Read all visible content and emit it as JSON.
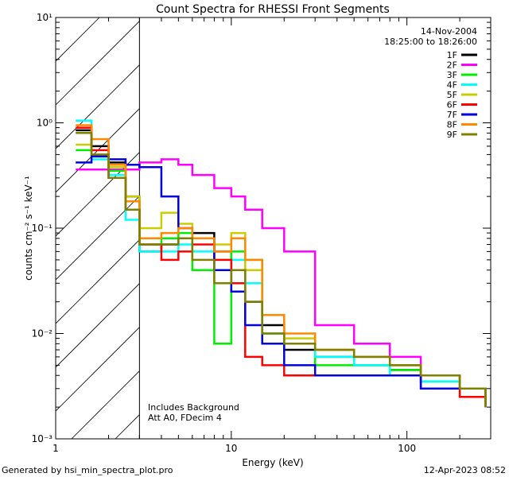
{
  "chart_data": {
    "type": "line",
    "title": "Count Spectra for RHESSI Front Segments",
    "xlabel": "Energy (keV)",
    "ylabel": "counts cm⁻² s⁻¹ keV⁻¹",
    "xscale": "log",
    "yscale": "log",
    "xlim": [
      1,
      300
    ],
    "ylim": [
      0.001,
      10
    ],
    "x_ticks": [
      {
        "value": 1,
        "label": "1"
      },
      {
        "value": 10,
        "label": "10"
      },
      {
        "value": 100,
        "label": "100"
      }
    ],
    "y_ticks": [
      {
        "value": 0.001,
        "label": "10⁻³"
      },
      {
        "value": 0.01,
        "label": "10⁻²"
      },
      {
        "value": 0.1,
        "label": "10⁻¹"
      },
      {
        "value": 1,
        "label": "10⁰"
      },
      {
        "value": 10,
        "label": "10¹"
      }
    ],
    "excluded_region": [
      1,
      3
    ],
    "grid": false,
    "legend_position": "top-right",
    "date": "14-Nov-2004",
    "time_range": "18:25:00 to 18:26:00",
    "annotation_lines": [
      "Includes Background",
      "Att A0, FDecim 4"
    ],
    "series": [
      {
        "name": "1F",
        "color": "#000000",
        "x": [
          1.3,
          1.6,
          2,
          2.5,
          3,
          4,
          5,
          6,
          8,
          10,
          12,
          15,
          20,
          30,
          50,
          80,
          120,
          200,
          280
        ],
        "y": [
          0.85,
          0.6,
          0.42,
          0.2,
          0.06,
          0.07,
          0.08,
          0.09,
          0.06,
          0.04,
          0.02,
          0.012,
          0.007,
          0.006,
          0.005,
          0.0045,
          0.004,
          0.003,
          0.002
        ]
      },
      {
        "name": "2F",
        "color": "#ff00ff",
        "x": [
          1.3,
          1.6,
          2,
          2.5,
          3,
          4,
          5,
          6,
          8,
          10,
          12,
          15,
          20,
          30,
          50,
          80,
          120,
          200,
          280
        ],
        "y": [
          0.36,
          0.36,
          0.36,
          0.36,
          0.42,
          0.45,
          0.4,
          0.32,
          0.24,
          0.2,
          0.15,
          0.1,
          0.06,
          0.012,
          0.008,
          0.006,
          0.004,
          0.003,
          0.002
        ]
      },
      {
        "name": "3F",
        "color": "#00ee00",
        "x": [
          1.3,
          1.6,
          2,
          2.5,
          3,
          4,
          5,
          6,
          8,
          10,
          12,
          15,
          20,
          30,
          50,
          80,
          120,
          200,
          280
        ],
        "y": [
          0.55,
          0.5,
          0.35,
          0.18,
          0.07,
          0.08,
          0.09,
          0.04,
          0.008,
          0.06,
          0.05,
          0.01,
          0.008,
          0.005,
          0.005,
          0.0045,
          0.0035,
          0.003,
          0.002
        ]
      },
      {
        "name": "4F",
        "color": "#00ffff",
        "x": [
          1.3,
          1.6,
          2,
          2.5,
          3,
          4,
          5,
          6,
          8,
          10,
          12,
          15,
          20,
          30,
          50,
          80,
          120,
          200,
          280
        ],
        "y": [
          1.05,
          0.45,
          0.32,
          0.12,
          0.06,
          0.06,
          0.07,
          0.06,
          0.04,
          0.05,
          0.03,
          0.01,
          0.008,
          0.006,
          0.005,
          0.004,
          0.0035,
          0.003,
          0.002
        ]
      },
      {
        "name": "5F",
        "color": "#cccc00",
        "x": [
          1.3,
          1.6,
          2,
          2.5,
          3,
          4,
          5,
          6,
          8,
          10,
          12,
          15,
          20,
          30,
          50,
          80,
          120,
          200,
          280
        ],
        "y": [
          0.62,
          0.5,
          0.38,
          0.2,
          0.1,
          0.14,
          0.11,
          0.08,
          0.07,
          0.09,
          0.04,
          0.015,
          0.009,
          0.007,
          0.006,
          0.005,
          0.004,
          0.003,
          0.002
        ]
      },
      {
        "name": "6F",
        "color": "#ff0000",
        "x": [
          1.3,
          1.6,
          2,
          2.5,
          3,
          4,
          5,
          6,
          8,
          10,
          12,
          15,
          20,
          30,
          50,
          80,
          120,
          200,
          280
        ],
        "y": [
          0.9,
          0.55,
          0.3,
          0.15,
          0.07,
          0.05,
          0.06,
          0.07,
          0.05,
          0.03,
          0.006,
          0.005,
          0.004,
          0.004,
          0.004,
          0.004,
          0.003,
          0.0025,
          0.002
        ]
      },
      {
        "name": "7F",
        "color": "#0000dd",
        "x": [
          1.3,
          1.6,
          2,
          2.5,
          3,
          4,
          5,
          6,
          8,
          10,
          12,
          15,
          20,
          30,
          50,
          80,
          120,
          200,
          280
        ],
        "y": [
          0.42,
          0.48,
          0.45,
          0.4,
          0.38,
          0.2,
          0.1,
          0.08,
          0.04,
          0.025,
          0.012,
          0.008,
          0.005,
          0.004,
          0.004,
          0.004,
          0.003,
          0.003,
          0.002
        ]
      },
      {
        "name": "8F",
        "color": "#ff8800",
        "x": [
          1.3,
          1.6,
          2,
          2.5,
          3,
          4,
          5,
          6,
          8,
          10,
          12,
          15,
          20,
          30,
          50,
          80,
          120,
          200,
          280
        ],
        "y": [
          0.95,
          0.7,
          0.4,
          0.18,
          0.08,
          0.09,
          0.1,
          0.08,
          0.06,
          0.08,
          0.05,
          0.015,
          0.01,
          0.007,
          0.006,
          0.005,
          0.004,
          0.003,
          0.002
        ]
      },
      {
        "name": "9F",
        "color": "#808000",
        "x": [
          1.3,
          1.6,
          2,
          2.5,
          3,
          4,
          5,
          6,
          8,
          10,
          12,
          15,
          20,
          30,
          50,
          80,
          120,
          200,
          280
        ],
        "y": [
          0.8,
          0.5,
          0.3,
          0.15,
          0.07,
          0.07,
          0.08,
          0.05,
          0.03,
          0.04,
          0.02,
          0.01,
          0.008,
          0.007,
          0.006,
          0.005,
          0.004,
          0.003,
          0.002
        ]
      }
    ]
  },
  "footer": {
    "generator": "Generated by hsi_min_spectra_plot.pro",
    "timestamp": "12-Apr-2023 08:52"
  }
}
